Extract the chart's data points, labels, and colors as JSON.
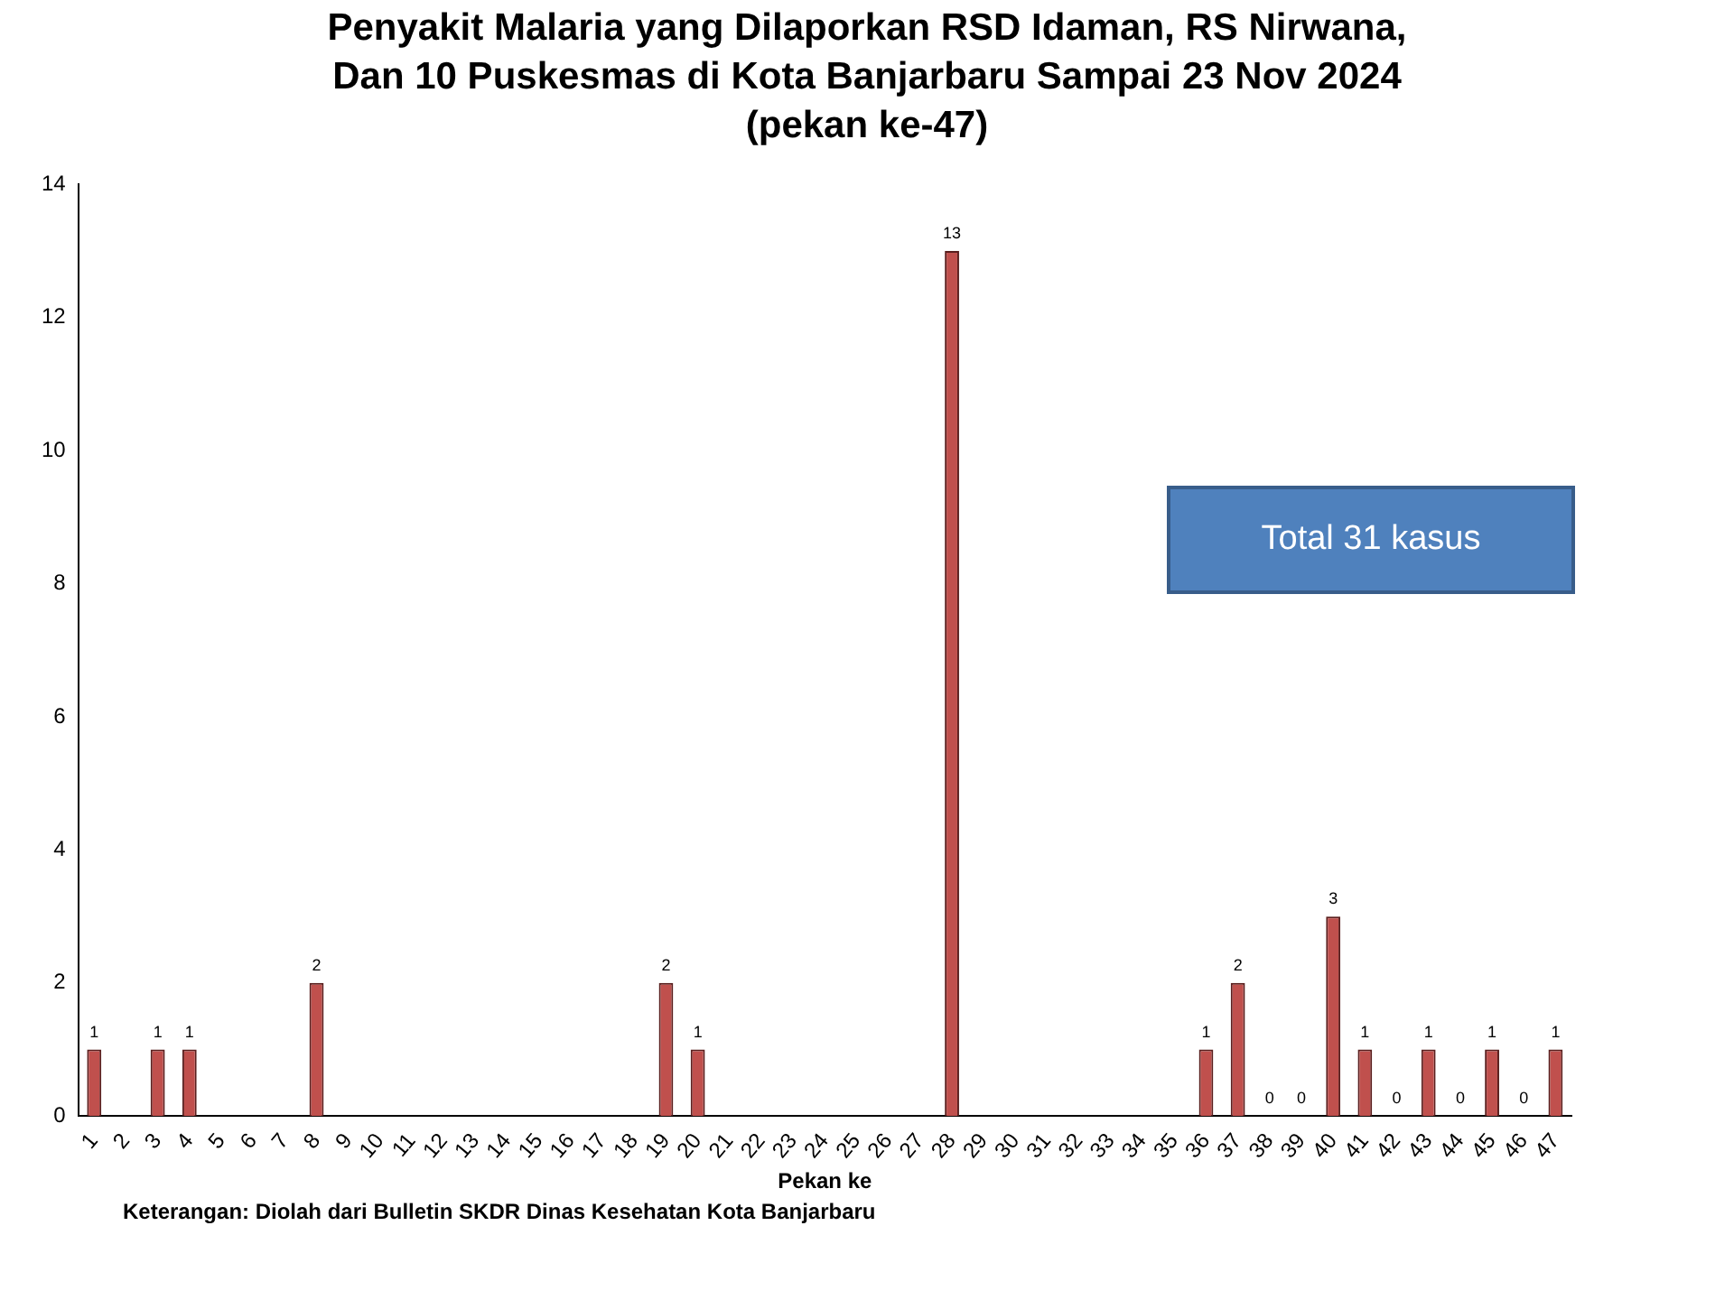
{
  "chart_data": {
    "type": "bar",
    "title": "Penyakit Malaria yang Dilaporkan RSD Idaman, RS Nirwana, Dan 10 Puskesmas di Kota Banjarbaru Sampai 23 Nov 2024 (pekan ke-47)",
    "xlabel": "Pekan ke",
    "categories": [
      "1",
      "2",
      "3",
      "4",
      "5",
      "6",
      "7",
      "8",
      "9",
      "10",
      "11",
      "12",
      "13",
      "14",
      "15",
      "16",
      "17",
      "18",
      "19",
      "20",
      "21",
      "22",
      "23",
      "24",
      "25",
      "26",
      "27",
      "28",
      "29",
      "30",
      "31",
      "32",
      "33",
      "34",
      "35",
      "36",
      "37",
      "38",
      "39",
      "40",
      "41",
      "42",
      "43",
      "44",
      "45",
      "46",
      "47"
    ],
    "values": [
      1,
      0,
      1,
      1,
      0,
      0,
      0,
      2,
      0,
      0,
      0,
      0,
      0,
      0,
      0,
      0,
      0,
      0,
      2,
      1,
      0,
      0,
      0,
      0,
      0,
      0,
      0,
      13,
      0,
      0,
      0,
      0,
      0,
      0,
      0,
      1,
      2,
      0,
      0,
      3,
      1,
      0,
      1,
      0,
      1,
      0,
      1
    ],
    "value_labels": [
      "1",
      null,
      "1",
      "1",
      null,
      null,
      null,
      "2",
      null,
      null,
      null,
      null,
      null,
      null,
      null,
      null,
      null,
      null,
      "2",
      "1",
      null,
      null,
      null,
      null,
      null,
      null,
      null,
      "13",
      null,
      null,
      null,
      null,
      null,
      null,
      null,
      "1",
      "2",
      "0",
      "0",
      "3",
      "1",
      "0",
      "1",
      "0",
      "1",
      "0",
      "1"
    ],
    "color": "#c0504d",
    "ylim": [
      0,
      14
    ],
    "yticks": [
      0,
      2,
      4,
      6,
      8,
      10,
      12,
      14
    ],
    "grid": false,
    "legend": false,
    "annotations": [
      "Total 31 kasus",
      "Keterangan: Diolah dari Bulletin SKDR Dinas Kesehatan Kota Banjarbaru"
    ]
  }
}
